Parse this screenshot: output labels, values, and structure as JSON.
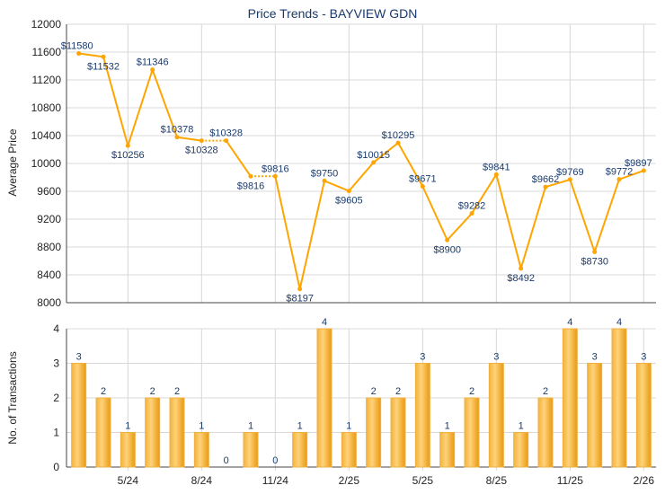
{
  "chart_data": [
    {
      "type": "line",
      "title": "Price Trends - BAYVIEW GDN",
      "xlabel": "",
      "ylabel": "Average Price",
      "ylim": [
        8000,
        12000
      ],
      "yticks": [
        8000,
        8400,
        8800,
        9200,
        9600,
        10000,
        10400,
        10800,
        11200,
        11600,
        12000
      ],
      "grid": true,
      "values": [
        11580,
        11532,
        10256,
        11346,
        10378,
        10328,
        10328,
        9816,
        9816,
        8197,
        9750,
        9605,
        10015,
        10295,
        9671,
        8900,
        9282,
        9841,
        8492,
        9662,
        9769,
        8730,
        9772,
        9897
      ],
      "value_labels": [
        "$11580",
        "$11532",
        "$10256",
        "$11346",
        "$10378",
        "$10328",
        "$10328",
        "$9816",
        "$9816",
        "$8197",
        "$9750",
        "$9605",
        "$10015",
        "$10295",
        "$9671",
        "$8900",
        "$9282",
        "$9841",
        "$8492",
        "$9662",
        "$9769",
        "$8730",
        "$9772",
        "$9897"
      ],
      "carried_forward_points": [
        6,
        8
      ],
      "color": "#FFA500"
    },
    {
      "type": "bar",
      "xlabel": "",
      "ylabel": "No. of Transactions",
      "ylim": [
        0,
        4
      ],
      "yticks": [
        0,
        1,
        2,
        3,
        4
      ],
      "grid": true,
      "xtick_labels": {
        "2": "5/24",
        "5": "8/24",
        "8": "11/24",
        "11": "2/25",
        "14": "5/25",
        "17": "8/25",
        "20": "11/25",
        "23": "2/26"
      },
      "values": [
        3,
        2,
        1,
        2,
        2,
        1,
        0,
        1,
        0,
        1,
        4,
        1,
        2,
        2,
        3,
        1,
        2,
        3,
        1,
        2,
        4,
        3,
        4,
        3
      ],
      "color": "#F0A830"
    }
  ]
}
